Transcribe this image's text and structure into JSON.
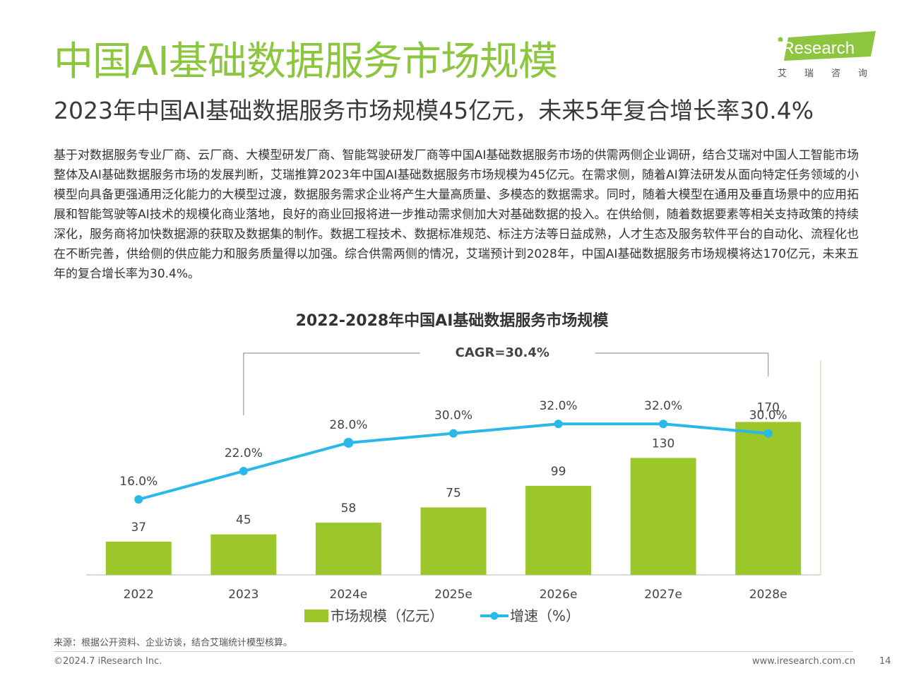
{
  "page": {
    "title": "中国AI基础数据服务市场规模",
    "subtitle": "2023年中国AI基础数据服务市场规模45亿元，未来5年复合增长率30.4%",
    "body": "基于对数据服务专业厂商、云厂商、大模型研发厂商、智能驾驶研发厂商等中国AI基础数据服务市场的供需两侧企业调研，结合艾瑞对中国人工智能市场整体及AI基础数据服务市场的发展判断，艾瑞推算2023年中国AI基础数据服务市场规模为45亿元。在需求侧，随着AI算法研发从面向特定任务领域的小模型向具备更强通用泛化能力的大模型过渡，数据服务需求企业将产生大量高质量、多模态的数据需求。同时，随着大模型在通用及垂直场景中的应用拓展和智能驾驶等AI技术的规模化商业落地，良好的商业回报将进一步推动需求侧加大对基础数据的投入。在供给侧，随着数据要素等相关支持政策的持续深化，服务商将加快数据源的获取及数据集的制作。数据工程技术、数据标准规范、标注方法等日益成熟，人才生态及服务软件平台的自动化、流程化也在不断完善，供给侧的供应能力和服务质量得以加强。综合供需两侧的情况，艾瑞预计到2028年，中国AI基础数据服务市场规模将达170亿元，未来五年的复合增长率为30.4%。",
    "source": "来源：根据公开资料、企业访谈，结合艾瑞统计模型核算。",
    "copyright": "©2024.7 iResearch Inc.",
    "website": "www.iresearch.com.cn",
    "page_number": "14"
  },
  "logo": {
    "brand": "iResearch",
    "brand_cn": "艾瑞咨询"
  },
  "colors": {
    "title": "#8CC63F",
    "bar": "#9BC72A",
    "line": "#29B9E8",
    "text": "#333333"
  },
  "chart_data": {
    "type": "bar",
    "title": "2022-2028年中国AI基础数据服务市场规模",
    "categories": [
      "2022",
      "2023",
      "2024e",
      "2025e",
      "2026e",
      "2027e",
      "2028e"
    ],
    "series": [
      {
        "name": "市场规模（亿元）",
        "type": "bar",
        "values": [
          37,
          45,
          58,
          75,
          99,
          130,
          170
        ],
        "labels": [
          "37",
          "45",
          "58",
          "75",
          "99",
          "130",
          "170"
        ]
      },
      {
        "name": "增速（%）",
        "type": "line",
        "values": [
          16.0,
          22.0,
          28.0,
          30.0,
          32.0,
          32.0,
          30.0
        ],
        "labels": [
          "16.0%",
          "22.0%",
          "28.0%",
          "30.0%",
          "32.0%",
          "32.0%",
          "30.0%"
        ]
      }
    ],
    "annotation": "CAGR=30.4%",
    "bar_ylim": [
      0,
      230
    ],
    "line_ylim": [
      0,
      50
    ],
    "legend": "bottom-center",
    "grid": false
  }
}
